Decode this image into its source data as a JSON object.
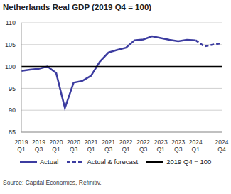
{
  "chart_data": {
    "type": "line",
    "title": "Netherlands Real GDP (2019 Q4 = 100)",
    "source": "Source: Capital Economics, Refinitiv.",
    "categories": [
      "2019 Q1",
      null,
      "2019 Q3",
      null,
      "2020 Q1",
      null,
      "2020 Q3",
      null,
      "2021 Q1",
      null,
      "2021 Q3",
      null,
      "2022 Q1",
      null,
      "2022 Q3",
      null,
      "2023 Q1",
      null,
      "2023 Q3",
      null,
      "2024 Q1",
      null,
      null,
      "2024 Q4"
    ],
    "series": [
      {
        "name": "Actual",
        "color": "#3c3ca0",
        "line_style": "solid",
        "values": [
          99.0,
          99.3,
          99.5,
          100.0,
          98.5,
          90.5,
          96.3,
          96.7,
          97.9,
          101.1,
          103.2,
          103.8,
          104.3,
          106.0,
          106.2,
          106.9,
          106.5,
          106.1,
          105.8,
          106.1,
          106.0,
          null,
          null,
          null
        ]
      },
      {
        "name": "Actual & forecast",
        "color": "#3c3ca0",
        "line_style": "dashed",
        "values": [
          null,
          null,
          null,
          null,
          null,
          null,
          null,
          null,
          null,
          null,
          null,
          null,
          null,
          null,
          null,
          null,
          null,
          null,
          null,
          null,
          106.0,
          104.6,
          105.0,
          105.3
        ]
      },
      {
        "name": "2019 Q4 = 100",
        "color": "#000000",
        "line_style": "solid",
        "values": [
          100,
          100,
          100,
          100,
          100,
          100,
          100,
          100,
          100,
          100,
          100,
          100,
          100,
          100,
          100,
          100,
          100,
          100,
          100,
          100,
          100,
          100,
          100,
          100
        ]
      }
    ],
    "ylim": [
      85,
      110
    ],
    "yticks": [
      85,
      90,
      95,
      100,
      105,
      110
    ],
    "grid": true,
    "legend": "bottom"
  }
}
